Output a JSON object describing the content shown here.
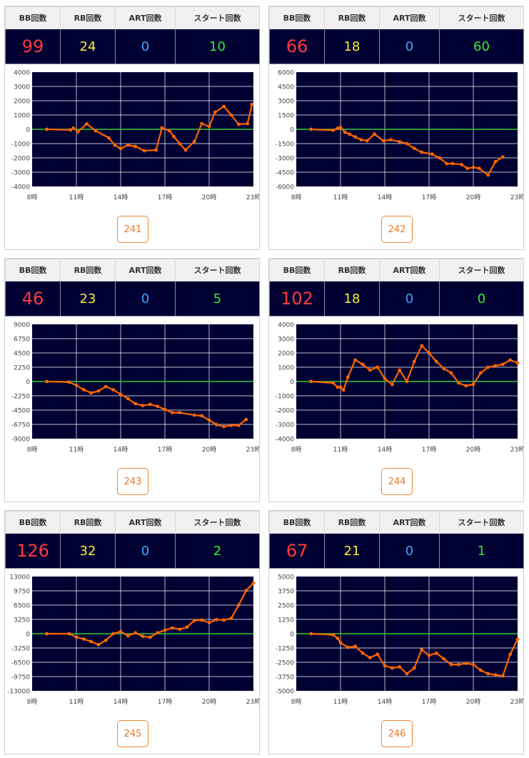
{
  "headers": {
    "bb": "BB回数",
    "rb": "RB回数",
    "art": "ART回数",
    "start": "スタート回数"
  },
  "colors": {
    "plot_bg": "#000033",
    "zero_line": "#33cc33",
    "series_line": "#ff6600",
    "grid": "#ffffff"
  },
  "machines": [
    {
      "bb": "99",
      "rb": "24",
      "art": "0",
      "start": "10",
      "number": "241",
      "chart_data": {
        "type": "line",
        "x_ticks": [
          "8時",
          "11時",
          "14時",
          "17時",
          "20時",
          "23時"
        ],
        "y_ticks": [
          "4000",
          "3000",
          "2000",
          "1000",
          "0",
          "-1000",
          "-2000",
          "-3000",
          "-4000"
        ],
        "xlim": [
          8,
          23
        ],
        "ylim": [
          -4000,
          4000
        ],
        "grid": true,
        "x": [
          9,
          10.6,
          10.8,
          11.1,
          11.7,
          12.3,
          13.2,
          13.6,
          14.0,
          14.5,
          15.0,
          15.6,
          16.4,
          16.8,
          17.3,
          17.6,
          18.0,
          18.4,
          19.0,
          19.5,
          20.0,
          20.4,
          21.0,
          21.5,
          22.0,
          22.6,
          22.9
        ],
        "y": [
          0,
          -40,
          80,
          -180,
          380,
          -100,
          -600,
          -1100,
          -1350,
          -1100,
          -1200,
          -1500,
          -1450,
          100,
          -100,
          -500,
          -1000,
          -1450,
          -850,
          400,
          200,
          1200,
          1600,
          1000,
          350,
          400,
          1750
        ]
      }
    },
    {
      "bb": "66",
      "rb": "18",
      "art": "0",
      "start": "60",
      "number": "242",
      "chart_data": {
        "type": "line",
        "x_ticks": [
          "8時",
          "11時",
          "14時",
          "17時",
          "20時",
          "23時"
        ],
        "y_ticks": [
          "6000",
          "4500",
          "3000",
          "1500",
          "0",
          "-1500",
          "-3000",
          "-4500",
          "-6000"
        ],
        "xlim": [
          8,
          23
        ],
        "ylim": [
          -6000,
          6000
        ],
        "grid": true,
        "x": [
          9,
          10.5,
          10.8,
          11.0,
          11.3,
          11.6,
          12.0,
          12.4,
          12.8,
          13.3,
          13.9,
          14.4,
          15.0,
          15.5,
          16.0,
          16.5,
          17.2,
          17.7,
          18.2,
          18.6,
          19.2,
          19.6,
          20.0,
          20.4,
          21.0,
          21.5,
          22.0
        ],
        "y": [
          0,
          -100,
          100,
          200,
          -300,
          -500,
          -800,
          -1100,
          -1200,
          -500,
          -1200,
          -1100,
          -1300,
          -1500,
          -2000,
          -2400,
          -2600,
          -3000,
          -3600,
          -3600,
          -3700,
          -4100,
          -4000,
          -4100,
          -4800,
          -3400,
          -2900
        ]
      }
    },
    {
      "bb": "46",
      "rb": "23",
      "art": "0",
      "start": "5",
      "number": "243",
      "chart_data": {
        "type": "line",
        "x_ticks": [
          "8時",
          "11時",
          "14時",
          "17時",
          "20時",
          "23時"
        ],
        "y_ticks": [
          "9000",
          "6750",
          "4500",
          "2250",
          "0",
          "-2250",
          "-4500",
          "-6750",
          "-9000"
        ],
        "xlim": [
          8,
          23
        ],
        "ylim": [
          -9000,
          9000
        ],
        "grid": true,
        "x": [
          9,
          10.5,
          11.0,
          11.5,
          12.0,
          12.5,
          13.0,
          13.5,
          14.0,
          14.5,
          15.0,
          15.5,
          16.0,
          16.5,
          17.0,
          17.5,
          18.0,
          19.0,
          19.5,
          20.0,
          20.5,
          21.0,
          21.5,
          22.0,
          22.5
        ],
        "y": [
          0,
          -100,
          -600,
          -1300,
          -1800,
          -1500,
          -800,
          -1300,
          -2000,
          -2700,
          -3500,
          -3800,
          -3600,
          -3900,
          -4400,
          -4900,
          -4900,
          -5300,
          -5400,
          -6100,
          -6800,
          -7100,
          -6900,
          -6900,
          -6000
        ]
      }
    },
    {
      "bb": "102",
      "rb": "18",
      "art": "0",
      "start": "0",
      "number": "244",
      "chart_data": {
        "type": "line",
        "x_ticks": [
          "8時",
          "11時",
          "14時",
          "17時",
          "20時",
          "23時"
        ],
        "y_ticks": [
          "4000",
          "3000",
          "2000",
          "1000",
          "0",
          "-1000",
          "-2000",
          "-3000",
          "-4000"
        ],
        "xlim": [
          8,
          23
        ],
        "ylim": [
          -4000,
          4000
        ],
        "grid": true,
        "x": [
          9,
          10.5,
          10.8,
          11.0,
          11.2,
          11.5,
          12.0,
          12.5,
          13.0,
          13.5,
          14.0,
          14.5,
          15.0,
          15.5,
          16.0,
          16.5,
          17.0,
          17.5,
          18.0,
          18.5,
          19.0,
          19.5,
          20.0,
          20.5,
          21.0,
          21.5,
          22.0,
          22.5,
          23.0
        ],
        "y": [
          0,
          -100,
          -400,
          -400,
          -600,
          300,
          1500,
          1200,
          800,
          1000,
          200,
          -200,
          800,
          0,
          1400,
          2500,
          2000,
          1400,
          900,
          600,
          -100,
          -300,
          -200,
          600,
          1000,
          1100,
          1200,
          1500,
          1300
        ]
      }
    },
    {
      "bb": "126",
      "rb": "32",
      "art": "0",
      "start": "2",
      "number": "245",
      "chart_data": {
        "type": "line",
        "x_ticks": [
          "8時",
          "11時",
          "14時",
          "17時",
          "20時",
          "23時"
        ],
        "y_ticks": [
          "13000",
          "9750",
          "6500",
          "3250",
          "0",
          "-3250",
          "-6500",
          "-9750",
          "-13000"
        ],
        "xlim": [
          8,
          23
        ],
        "ylim": [
          -13000,
          13000
        ],
        "grid": true,
        "x": [
          9,
          10.5,
          11.0,
          11.5,
          12.0,
          12.5,
          13.0,
          13.5,
          14.0,
          14.5,
          15.0,
          15.5,
          16.0,
          16.5,
          17.0,
          17.5,
          18.0,
          18.5,
          19.0,
          19.5,
          20.0,
          20.5,
          21.0,
          21.5,
          22.0,
          22.5,
          23.0
        ],
        "y": [
          0,
          0,
          -800,
          -1200,
          -1800,
          -2500,
          -1500,
          0,
          500,
          -500,
          200,
          -600,
          -800,
          200,
          800,
          1300,
          1000,
          1500,
          3000,
          3100,
          2500,
          3200,
          3100,
          3500,
          6500,
          9800,
          11500
        ]
      }
    },
    {
      "bb": "67",
      "rb": "21",
      "art": "0",
      "start": "1",
      "number": "246",
      "chart_data": {
        "type": "line",
        "x_ticks": [
          "8時",
          "11時",
          "14時",
          "17時",
          "20時",
          "23時"
        ],
        "y_ticks": [
          "5000",
          "3750",
          "2500",
          "1250",
          "0",
          "-1250",
          "-2500",
          "-3750",
          "-5000"
        ],
        "xlim": [
          8,
          23
        ],
        "ylim": [
          -5000,
          5000
        ],
        "grid": true,
        "x": [
          9,
          10.5,
          10.8,
          11.0,
          11.5,
          12.0,
          12.5,
          13.0,
          13.5,
          14.0,
          14.5,
          15.0,
          15.5,
          16.0,
          16.5,
          17.0,
          17.5,
          18.0,
          18.5,
          19.0,
          19.5,
          20.0,
          20.5,
          21.0,
          21.5,
          22.0,
          22.5,
          23.0
        ],
        "y": [
          0,
          -100,
          -400,
          -800,
          -1200,
          -1100,
          -1700,
          -2100,
          -1800,
          -2800,
          -3000,
          -2900,
          -3500,
          -3000,
          -1400,
          -1900,
          -1700,
          -2200,
          -2700,
          -2700,
          -2600,
          -2700,
          -3200,
          -3500,
          -3600,
          -3700,
          -1800,
          -500
        ]
      }
    }
  ]
}
